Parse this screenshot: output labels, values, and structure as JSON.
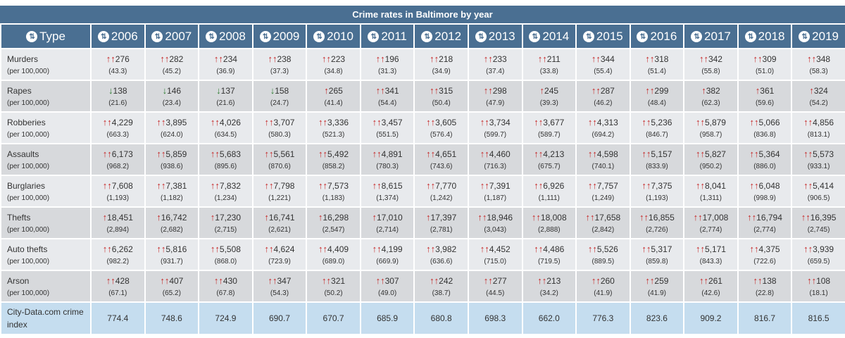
{
  "title": "Crime rates in Baltimore by year",
  "header": {
    "type_label": "Type",
    "years": [
      "2006",
      "2007",
      "2008",
      "2009",
      "2010",
      "2011",
      "2012",
      "2013",
      "2014",
      "2015",
      "2016",
      "2017",
      "2018",
      "2019"
    ]
  },
  "colors": {
    "header_bg": "#4a6f92",
    "up_arrow": "#c62828",
    "down_arrow": "#2e7d32",
    "index_row_bg": "#c5ddef"
  },
  "rows": [
    {
      "label": "Murders",
      "sub": "(per 100,000)",
      "cells": [
        {
          "v": "276",
          "r": "(43.3)",
          "a": "up2"
        },
        {
          "v": "282",
          "r": "(45.2)",
          "a": "up2"
        },
        {
          "v": "234",
          "r": "(36.9)",
          "a": "up2"
        },
        {
          "v": "238",
          "r": "(37.3)",
          "a": "up2"
        },
        {
          "v": "223",
          "r": "(34.8)",
          "a": "up2"
        },
        {
          "v": "196",
          "r": "(31.3)",
          "a": "up2"
        },
        {
          "v": "218",
          "r": "(34.9)",
          "a": "up2"
        },
        {
          "v": "233",
          "r": "(37.4)",
          "a": "up2"
        },
        {
          "v": "211",
          "r": "(33.8)",
          "a": "up2"
        },
        {
          "v": "344",
          "r": "(55.4)",
          "a": "up2"
        },
        {
          "v": "318",
          "r": "(51.4)",
          "a": "up2"
        },
        {
          "v": "342",
          "r": "(55.8)",
          "a": "up2"
        },
        {
          "v": "309",
          "r": "(51.0)",
          "a": "up2"
        },
        {
          "v": "348",
          "r": "(58.3)",
          "a": "up2"
        }
      ]
    },
    {
      "label": "Rapes",
      "sub": "(per 100,000)",
      "cells": [
        {
          "v": "138",
          "r": "(21.6)",
          "a": "down"
        },
        {
          "v": "146",
          "r": "(23.4)",
          "a": "down"
        },
        {
          "v": "137",
          "r": "(21.6)",
          "a": "down"
        },
        {
          "v": "158",
          "r": "(24.7)",
          "a": "down"
        },
        {
          "v": "265",
          "r": "(41.4)",
          "a": "up1"
        },
        {
          "v": "341",
          "r": "(54.4)",
          "a": "up2"
        },
        {
          "v": "315",
          "r": "(50.4)",
          "a": "up2"
        },
        {
          "v": "298",
          "r": "(47.9)",
          "a": "up2"
        },
        {
          "v": "245",
          "r": "(39.3)",
          "a": "up1"
        },
        {
          "v": "287",
          "r": "(46.2)",
          "a": "up2"
        },
        {
          "v": "299",
          "r": "(48.4)",
          "a": "up2"
        },
        {
          "v": "382",
          "r": "(62.3)",
          "a": "up1"
        },
        {
          "v": "361",
          "r": "(59.6)",
          "a": "up1"
        },
        {
          "v": "324",
          "r": "(54.2)",
          "a": "up1"
        }
      ]
    },
    {
      "label": "Robberies",
      "sub": "(per 100,000)",
      "cells": [
        {
          "v": "4,229",
          "r": "(663.3)",
          "a": "up2"
        },
        {
          "v": "3,895",
          "r": "(624.0)",
          "a": "up2"
        },
        {
          "v": "4,026",
          "r": "(634.5)",
          "a": "up2"
        },
        {
          "v": "3,707",
          "r": "(580.3)",
          "a": "up2"
        },
        {
          "v": "3,336",
          "r": "(521.3)",
          "a": "up2"
        },
        {
          "v": "3,457",
          "r": "(551.5)",
          "a": "up2"
        },
        {
          "v": "3,605",
          "r": "(576.4)",
          "a": "up2"
        },
        {
          "v": "3,734",
          "r": "(599.7)",
          "a": "up2"
        },
        {
          "v": "3,677",
          "r": "(589.7)",
          "a": "up2"
        },
        {
          "v": "4,313",
          "r": "(694.2)",
          "a": "up2"
        },
        {
          "v": "5,236",
          "r": "(846.7)",
          "a": "up2"
        },
        {
          "v": "5,879",
          "r": "(958.7)",
          "a": "up2"
        },
        {
          "v": "5,066",
          "r": "(836.8)",
          "a": "up2"
        },
        {
          "v": "4,856",
          "r": "(813.1)",
          "a": "up2"
        }
      ]
    },
    {
      "label": "Assaults",
      "sub": "(per 100,000)",
      "cells": [
        {
          "v": "6,173",
          "r": "(968.2)",
          "a": "up2"
        },
        {
          "v": "5,859",
          "r": "(938.6)",
          "a": "up2"
        },
        {
          "v": "5,683",
          "r": "(895.6)",
          "a": "up2"
        },
        {
          "v": "5,561",
          "r": "(870.6)",
          "a": "up2"
        },
        {
          "v": "5,492",
          "r": "(858.2)",
          "a": "up2"
        },
        {
          "v": "4,891",
          "r": "(780.3)",
          "a": "up2"
        },
        {
          "v": "4,651",
          "r": "(743.6)",
          "a": "up2"
        },
        {
          "v": "4,460",
          "r": "(716.3)",
          "a": "up2"
        },
        {
          "v": "4,213",
          "r": "(675.7)",
          "a": "up2"
        },
        {
          "v": "4,598",
          "r": "(740.1)",
          "a": "up2"
        },
        {
          "v": "5,157",
          "r": "(833.9)",
          "a": "up2"
        },
        {
          "v": "5,827",
          "r": "(950.2)",
          "a": "up2"
        },
        {
          "v": "5,364",
          "r": "(886.0)",
          "a": "up2"
        },
        {
          "v": "5,573",
          "r": "(933.1)",
          "a": "up2"
        }
      ]
    },
    {
      "label": "Burglaries",
      "sub": "(per 100,000)",
      "cells": [
        {
          "v": "7,608",
          "r": "(1,193)",
          "a": "up2"
        },
        {
          "v": "7,381",
          "r": "(1,182)",
          "a": "up2"
        },
        {
          "v": "7,832",
          "r": "(1,234)",
          "a": "up2"
        },
        {
          "v": "7,798",
          "r": "(1,221)",
          "a": "up2"
        },
        {
          "v": "7,573",
          "r": "(1,183)",
          "a": "up2"
        },
        {
          "v": "8,615",
          "r": "(1,374)",
          "a": "up2"
        },
        {
          "v": "7,770",
          "r": "(1,242)",
          "a": "up2"
        },
        {
          "v": "7,391",
          "r": "(1,187)",
          "a": "up2"
        },
        {
          "v": "6,926",
          "r": "(1,111)",
          "a": "up2"
        },
        {
          "v": "7,757",
          "r": "(1,249)",
          "a": "up2"
        },
        {
          "v": "7,375",
          "r": "(1,193)",
          "a": "up2"
        },
        {
          "v": "8,041",
          "r": "(1,311)",
          "a": "up2"
        },
        {
          "v": "6,048",
          "r": "(998.9)",
          "a": "up2"
        },
        {
          "v": "5,414",
          "r": "(906.5)",
          "a": "up2"
        }
      ]
    },
    {
      "label": "Thefts",
      "sub": "(per 100,000)",
      "cells": [
        {
          "v": "18,451",
          "r": "(2,894)",
          "a": "up1"
        },
        {
          "v": "16,742",
          "r": "(2,682)",
          "a": "up1"
        },
        {
          "v": "17,230",
          "r": "(2,715)",
          "a": "up1"
        },
        {
          "v": "16,741",
          "r": "(2,621)",
          "a": "up1"
        },
        {
          "v": "16,298",
          "r": "(2,547)",
          "a": "up1"
        },
        {
          "v": "17,010",
          "r": "(2,714)",
          "a": "up1"
        },
        {
          "v": "17,397",
          "r": "(2,781)",
          "a": "up1"
        },
        {
          "v": "18,946",
          "r": "(3,043)",
          "a": "up2"
        },
        {
          "v": "18,008",
          "r": "(2,888)",
          "a": "up2"
        },
        {
          "v": "17,658",
          "r": "(2,842)",
          "a": "up2"
        },
        {
          "v": "16,855",
          "r": "(2,726)",
          "a": "up2"
        },
        {
          "v": "17,008",
          "r": "(2,774)",
          "a": "up2"
        },
        {
          "v": "16,794",
          "r": "(2,774)",
          "a": "up2"
        },
        {
          "v": "16,395",
          "r": "(2,745)",
          "a": "up2"
        }
      ]
    },
    {
      "label": "Auto thefts",
      "sub": "(per 100,000)",
      "cells": [
        {
          "v": "6,262",
          "r": "(982.2)",
          "a": "up2"
        },
        {
          "v": "5,816",
          "r": "(931.7)",
          "a": "up2"
        },
        {
          "v": "5,508",
          "r": "(868.0)",
          "a": "up2"
        },
        {
          "v": "4,624",
          "r": "(723.9)",
          "a": "up2"
        },
        {
          "v": "4,409",
          "r": "(689.0)",
          "a": "up2"
        },
        {
          "v": "4,199",
          "r": "(669.9)",
          "a": "up2"
        },
        {
          "v": "3,982",
          "r": "(636.6)",
          "a": "up2"
        },
        {
          "v": "4,452",
          "r": "(715.0)",
          "a": "up2"
        },
        {
          "v": "4,486",
          "r": "(719.5)",
          "a": "up2"
        },
        {
          "v": "5,526",
          "r": "(889.5)",
          "a": "up2"
        },
        {
          "v": "5,317",
          "r": "(859.8)",
          "a": "up2"
        },
        {
          "v": "5,171",
          "r": "(843.3)",
          "a": "up2"
        },
        {
          "v": "4,375",
          "r": "(722.6)",
          "a": "up2"
        },
        {
          "v": "3,939",
          "r": "(659.5)",
          "a": "up2"
        }
      ]
    },
    {
      "label": "Arson",
      "sub": "(per 100,000)",
      "cells": [
        {
          "v": "428",
          "r": "(67.1)",
          "a": "up2"
        },
        {
          "v": "407",
          "r": "(65.2)",
          "a": "up2"
        },
        {
          "v": "430",
          "r": "(67.8)",
          "a": "up2"
        },
        {
          "v": "347",
          "r": "(54.3)",
          "a": "up2"
        },
        {
          "v": "321",
          "r": "(50.2)",
          "a": "up2"
        },
        {
          "v": "307",
          "r": "(49.0)",
          "a": "up2"
        },
        {
          "v": "242",
          "r": "(38.7)",
          "a": "up2"
        },
        {
          "v": "277",
          "r": "(44.5)",
          "a": "up2"
        },
        {
          "v": "213",
          "r": "(34.2)",
          "a": "up2"
        },
        {
          "v": "260",
          "r": "(41.9)",
          "a": "up2"
        },
        {
          "v": "259",
          "r": "(41.9)",
          "a": "up2"
        },
        {
          "v": "261",
          "r": "(42.6)",
          "a": "up2"
        },
        {
          "v": "138",
          "r": "(22.8)",
          "a": "up2"
        },
        {
          "v": "108",
          "r": "(18.1)",
          "a": "up2"
        }
      ]
    }
  ],
  "index_row": {
    "label": "City-Data.com crime index",
    "values": [
      "774.4",
      "748.6",
      "724.9",
      "690.7",
      "670.7",
      "685.9",
      "680.8",
      "698.3",
      "662.0",
      "776.3",
      "823.6",
      "909.2",
      "816.7",
      "816.5"
    ]
  }
}
